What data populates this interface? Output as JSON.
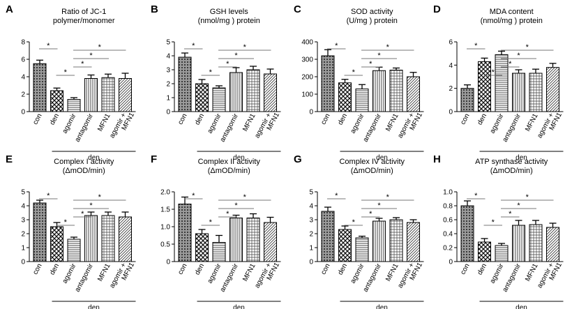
{
  "chart_data": [
    {
      "letter": "A",
      "title": [
        "Ratio of JC-1",
        "polymer/monomer"
      ],
      "type": "bar",
      "categories": [
        "con",
        "den",
        "agomir",
        "antagomir",
        "MFN1",
        "agomir + MFN1"
      ],
      "values": [
        5.5,
        2.4,
        1.4,
        3.8,
        3.9,
        3.8
      ],
      "errors": [
        0.4,
        0.3,
        0.2,
        0.4,
        0.4,
        0.6
      ],
      "ylim": [
        0,
        8
      ],
      "yticks": [
        "0",
        "2",
        "4",
        "6",
        "8"
      ],
      "group_label": "den",
      "significance": [
        [
          "con",
          "den",
          "*"
        ],
        [
          "den",
          "agomir",
          "*"
        ],
        [
          "agomir",
          "antagomir",
          "*"
        ],
        [
          "agomir",
          "MFN1",
          "*"
        ],
        [
          "agomir",
          "agomir + MFN1",
          "*"
        ]
      ]
    },
    {
      "letter": "B",
      "title": [
        "GSH levels",
        "(nmol/mg ) protein"
      ],
      "type": "bar",
      "categories": [
        "con",
        "den",
        "agomir",
        "antagomir",
        "MFN1",
        "agomir + MFN1"
      ],
      "values": [
        3.9,
        2.0,
        1.7,
        2.8,
        3.0,
        2.7
      ],
      "errors": [
        0.3,
        0.3,
        0.15,
        0.35,
        0.25,
        0.35
      ],
      "ylim": [
        0,
        5
      ],
      "yticks": [
        "0",
        "1",
        "2",
        "3",
        "4",
        "5"
      ],
      "group_label": "den",
      "significance": [
        [
          "con",
          "den",
          "*"
        ],
        [
          "den",
          "agomir",
          "*"
        ],
        [
          "agomir",
          "antagomir",
          "*"
        ],
        [
          "agomir",
          "MFN1",
          "*"
        ],
        [
          "agomir",
          "agomir + MFN1",
          "*"
        ]
      ]
    },
    {
      "letter": "C",
      "title": [
        "SOD activity",
        "(U/mg ) protein"
      ],
      "type": "bar",
      "categories": [
        "con",
        "den",
        "agomir",
        "antagomir",
        "MFN1",
        "agomir + MFN1"
      ],
      "values": [
        320,
        165,
        130,
        235,
        238,
        200
      ],
      "errors": [
        35,
        20,
        25,
        20,
        12,
        25
      ],
      "ylim": [
        0,
        400
      ],
      "yticks": [
        "0",
        "100",
        "200",
        "300",
        "400"
      ],
      "group_label": "den",
      "significance": [
        [
          "con",
          "den",
          "*"
        ],
        [
          "den",
          "agomir",
          "*"
        ],
        [
          "agomir",
          "antagomir",
          "*"
        ],
        [
          "agomir",
          "MFN1",
          "*"
        ],
        [
          "agomir",
          "agomir + MFN1",
          "*"
        ]
      ]
    },
    {
      "letter": "D",
      "title": [
        "MDA content",
        "(nmol/mg ) protein"
      ],
      "type": "bar",
      "categories": [
        "con",
        "den",
        "agomir",
        "antagomir",
        "MFN1",
        "agomir + MFN1"
      ],
      "values": [
        2.0,
        4.3,
        4.9,
        3.3,
        3.3,
        3.8
      ],
      "errors": [
        0.3,
        0.3,
        0.3,
        0.3,
        0.35,
        0.35
      ],
      "ylim": [
        0,
        6
      ],
      "yticks": [
        "0",
        "2",
        "4",
        "6"
      ],
      "group_label": "den",
      "significance": [
        [
          "con",
          "den",
          "*"
        ],
        [
          "den",
          "agomir",
          "*"
        ],
        [
          "agomir",
          "antagomir",
          "*"
        ],
        [
          "agomir",
          "MFN1",
          "*"
        ],
        [
          "agomir",
          "agomir + MFN1",
          "*"
        ]
      ]
    },
    {
      "letter": "E",
      "title": [
        "Complex I activity",
        "(ΔmOD/min)"
      ],
      "type": "bar",
      "categories": [
        "con",
        "den",
        "agomir",
        "antagomir",
        "MFN1",
        "agomir + MFN1"
      ],
      "values": [
        4.2,
        2.5,
        1.6,
        3.3,
        3.3,
        3.2
      ],
      "errors": [
        0.2,
        0.3,
        0.15,
        0.25,
        0.25,
        0.35
      ],
      "ylim": [
        0,
        5
      ],
      "yticks": [
        "0",
        "1",
        "2",
        "3",
        "4",
        "5"
      ],
      "group_label": "den",
      "significance": [
        [
          "con",
          "den",
          "*"
        ],
        [
          "den",
          "agomir",
          "*"
        ],
        [
          "agomir",
          "antagomir",
          "*"
        ],
        [
          "agomir",
          "MFN1",
          "*"
        ],
        [
          "agomir",
          "agomir + MFN1",
          "*"
        ]
      ]
    },
    {
      "letter": "F",
      "title": [
        "Complex II activity",
        "(ΔmOD/min)"
      ],
      "type": "bar",
      "categories": [
        "con",
        "den",
        "agomir",
        "antagomir",
        "MFN1",
        "agomir + MFN1"
      ],
      "values": [
        1.65,
        0.8,
        0.55,
        1.25,
        1.25,
        1.12
      ],
      "errors": [
        0.2,
        0.12,
        0.2,
        0.08,
        0.12,
        0.15
      ],
      "ylim": [
        0,
        2.0
      ],
      "yticks": [
        "0",
        "0.5",
        "1.0",
        "1.5",
        "2.0"
      ],
      "group_label": "den",
      "significance": [
        [
          "con",
          "den",
          "*"
        ],
        [
          "den",
          "agomir",
          "*"
        ],
        [
          "agomir",
          "antagomir",
          "*"
        ],
        [
          "agomir",
          "MFN1",
          "*"
        ],
        [
          "agomir",
          "agomir + MFN1",
          "*"
        ]
      ]
    },
    {
      "letter": "G",
      "title": [
        "Complex IV activity",
        "(ΔmOD/min)"
      ],
      "type": "bar",
      "categories": [
        "con",
        "den",
        "agomir",
        "antagomir",
        "MFN1",
        "agomir + MFN1"
      ],
      "values": [
        3.6,
        2.3,
        1.7,
        2.9,
        3.0,
        2.8
      ],
      "errors": [
        0.3,
        0.25,
        0.12,
        0.2,
        0.15,
        0.2
      ],
      "ylim": [
        0,
        5
      ],
      "yticks": [
        "0",
        "1",
        "2",
        "3",
        "4",
        "5"
      ],
      "group_label": "den",
      "significance": [
        [
          "con",
          "den",
          "*"
        ],
        [
          "den",
          "agomir",
          "*"
        ],
        [
          "agomir",
          "antagomir",
          "*"
        ],
        [
          "agomir",
          "MFN1",
          "*"
        ],
        [
          "agomir",
          "agomir + MFN1",
          "*"
        ]
      ]
    },
    {
      "letter": "H",
      "title": [
        "ATP synthase activity",
        "(ΔmOD/min)"
      ],
      "type": "bar",
      "categories": [
        "con",
        "den",
        "agomir",
        "antagomir",
        "MFN1",
        "agomir + MFN1"
      ],
      "values": [
        0.8,
        0.28,
        0.23,
        0.52,
        0.53,
        0.49
      ],
      "errors": [
        0.07,
        0.05,
        0.03,
        0.07,
        0.06,
        0.06
      ],
      "ylim": [
        0,
        1.0
      ],
      "yticks": [
        "0",
        "0.2",
        "0.4",
        "0.6",
        "0.8",
        "1.0"
      ],
      "group_label": "den",
      "significance": [
        [
          "con",
          "den",
          "*"
        ],
        [
          "den",
          "agomir",
          "*"
        ],
        [
          "agomir",
          "antagomir",
          "*"
        ],
        [
          "agomir",
          "MFN1",
          "*"
        ],
        [
          "agomir",
          "agomir + MFN1",
          "*"
        ]
      ]
    }
  ]
}
